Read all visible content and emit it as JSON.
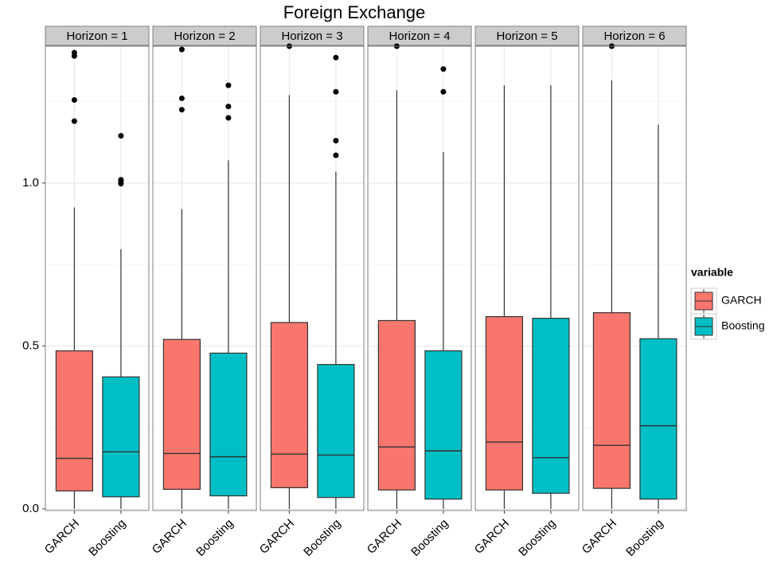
{
  "chart_data": {
    "type": "box",
    "title": "Foreign Exchange",
    "facets": [
      "Horizon = 1",
      "Horizon = 2",
      "Horizon = 3",
      "Horizon = 4",
      "Horizon = 5",
      "Horizon = 6"
    ],
    "categories": [
      "GARCH",
      "Boosting"
    ],
    "legend_title": "variable",
    "legend": "right",
    "grid": true,
    "ylim": [
      -0.005,
      1.42
    ],
    "yticks": [
      {
        "value": 0,
        "label": "0.0"
      },
      0.5,
      {
        "value": 1,
        "label": "1.0"
      }
    ],
    "series": [
      {
        "name": "GARCH",
        "color": "#f8766d",
        "boxes": [
          {
            "low": 0,
            "q1": 0.055,
            "median": 0.155,
            "q3": 0.485,
            "high": 0.925,
            "outliers": [
              1.4,
              1.39,
              1.255,
              1.19
            ]
          },
          {
            "low": 0,
            "q1": 0.06,
            "median": 0.17,
            "q3": 0.52,
            "high": 0.92,
            "outliers": [
              1.41,
              1.26,
              1.225
            ]
          },
          {
            "low": 0,
            "q1": 0.065,
            "median": 0.168,
            "q3": 0.572,
            "high": 1.27,
            "outliers": [
              1.42
            ]
          },
          {
            "low": 0,
            "q1": 0.058,
            "median": 0.19,
            "q3": 0.578,
            "high": 1.285,
            "outliers": [
              1.42
            ]
          },
          {
            "low": 0,
            "q1": 0.058,
            "median": 0.205,
            "q3": 0.59,
            "high": 1.3,
            "outliers": []
          },
          {
            "low": 0,
            "q1": 0.063,
            "median": 0.195,
            "q3": 0.602,
            "high": 1.315,
            "outliers": [
              1.42
            ]
          }
        ]
      },
      {
        "name": "Boosting",
        "color": "#00bfc4",
        "boxes": [
          {
            "low": 0,
            "q1": 0.037,
            "median": 0.175,
            "q3": 0.405,
            "high": 0.797,
            "outliers": [
              1.145,
              1.01,
              1.005,
              0.998
            ]
          },
          {
            "low": 0,
            "q1": 0.04,
            "median": 0.16,
            "q3": 0.478,
            "high": 1.07,
            "outliers": [
              1.3,
              1.235,
              1.2
            ]
          },
          {
            "low": 0,
            "q1": 0.035,
            "median": 0.165,
            "q3": 0.443,
            "high": 1.035,
            "outliers": [
              1.385,
              1.28,
              1.13,
              1.085
            ]
          },
          {
            "low": 0,
            "q1": 0.03,
            "median": 0.178,
            "q3": 0.485,
            "high": 1.095,
            "outliers": [
              1.35,
              1.28
            ]
          },
          {
            "low": 0,
            "q1": 0.048,
            "median": 0.157,
            "q3": 0.585,
            "high": 1.3,
            "outliers": []
          },
          {
            "low": 0,
            "q1": 0.03,
            "median": 0.255,
            "q3": 0.522,
            "high": 1.18,
            "outliers": []
          }
        ]
      }
    ]
  }
}
